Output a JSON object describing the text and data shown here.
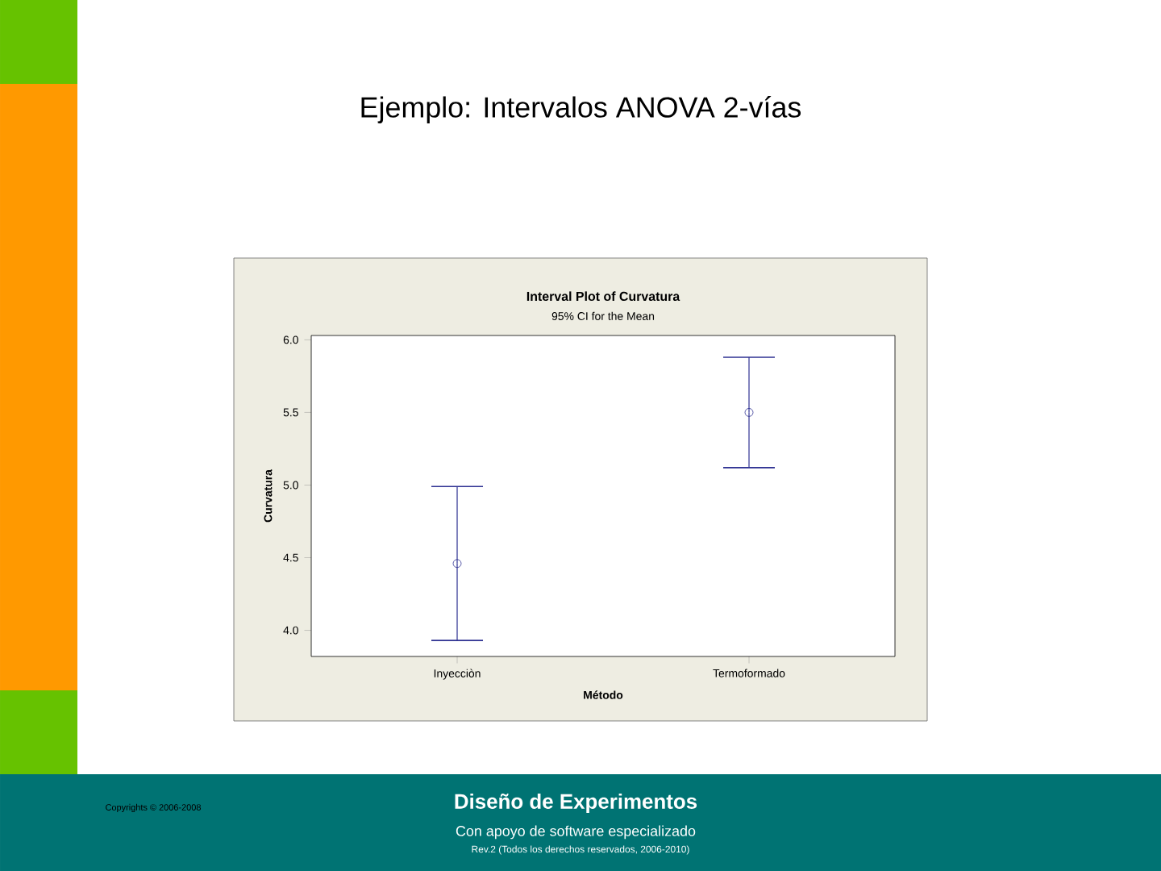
{
  "chart_data": {
    "type": "scatter",
    "title": "Interval Plot of Curvatura",
    "subtitle": "95% CI for the Mean",
    "xlabel": "Método",
    "ylabel": "Curvatura",
    "categories": [
      "Inyecciòn",
      "Termoformado"
    ],
    "values": [
      4.46,
      5.5
    ],
    "errors": [
      [
        3.93,
        4.99
      ],
      [
        5.12,
        5.88
      ]
    ],
    "color": "#2e3192",
    "marker": "circle",
    "ylim": [
      3.82,
      6.03
    ],
    "yticks": [
      {
        "value": 4.0,
        "label": "4.0"
      },
      {
        "value": 4.5,
        "label": "4.5"
      },
      {
        "value": 5.0,
        "label": "5.0"
      },
      {
        "value": 5.5,
        "label": "5.5"
      },
      {
        "value": 6.0,
        "label": "6.0"
      }
    ],
    "annotations": [
      "Ejemplo: Intervalos ANOVA 2-vías",
      "Diseño de Experimentos",
      "Con apoyo de software especializado",
      "Copyrights © 2006-2008",
      "Rev.2 (Todos los derechos reservados, 2006-2010)"
    ]
  }
}
